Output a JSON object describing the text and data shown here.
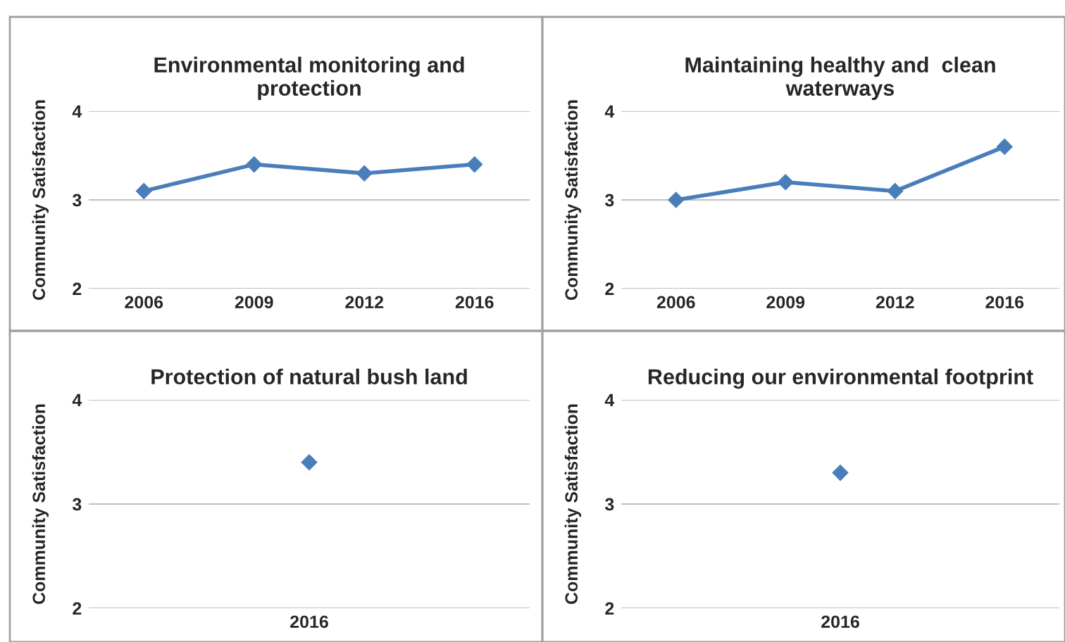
{
  "chart_data": [
    {
      "type": "line",
      "title": "Environmental monitoring and\nprotection",
      "ylabel": "Community Satisfaction",
      "categories": [
        "2006",
        "2009",
        "2012",
        "2016"
      ],
      "series": [
        {
          "color": "#4a7ebb",
          "values": [
            3.1,
            3.4,
            3.3,
            3.4
          ]
        }
      ],
      "ylim": [
        2,
        4
      ],
      "yticks": [
        2,
        3,
        4
      ],
      "grid": "y",
      "marker": "diamond",
      "line_style": "solid"
    },
    {
      "type": "line",
      "title": "Maintaining healthy and  clean\nwaterways",
      "ylabel": "Community Satisfaction",
      "categories": [
        "2006",
        "2009",
        "2012",
        "2016"
      ],
      "series": [
        {
          "color": "#4a7ebb",
          "values": [
            3.0,
            3.2,
            3.1,
            3.6
          ]
        }
      ],
      "ylim": [
        2,
        4
      ],
      "yticks": [
        2,
        3,
        4
      ],
      "grid": "y",
      "marker": "diamond",
      "line_style": "solid"
    },
    {
      "type": "line",
      "title": "Protection of natural bush land",
      "ylabel": "Community Satisfaction",
      "categories": [
        "2016"
      ],
      "series": [
        {
          "color": "#4a7ebb",
          "values": [
            3.4
          ]
        }
      ],
      "ylim": [
        2,
        4
      ],
      "yticks": [
        2,
        3,
        4
      ],
      "grid": "y",
      "marker": "diamond",
      "line_style": "solid"
    },
    {
      "type": "line",
      "title": "Reducing our environmental footprint",
      "ylabel": "Community Satisfaction",
      "categories": [
        "2016"
      ],
      "series": [
        {
          "color": "#4a7ebb",
          "values": [
            3.3
          ]
        }
      ],
      "ylim": [
        2,
        4
      ],
      "yticks": [
        2,
        3,
        4
      ],
      "grid": "y",
      "marker": "diamond",
      "line_style": "solid"
    }
  ]
}
